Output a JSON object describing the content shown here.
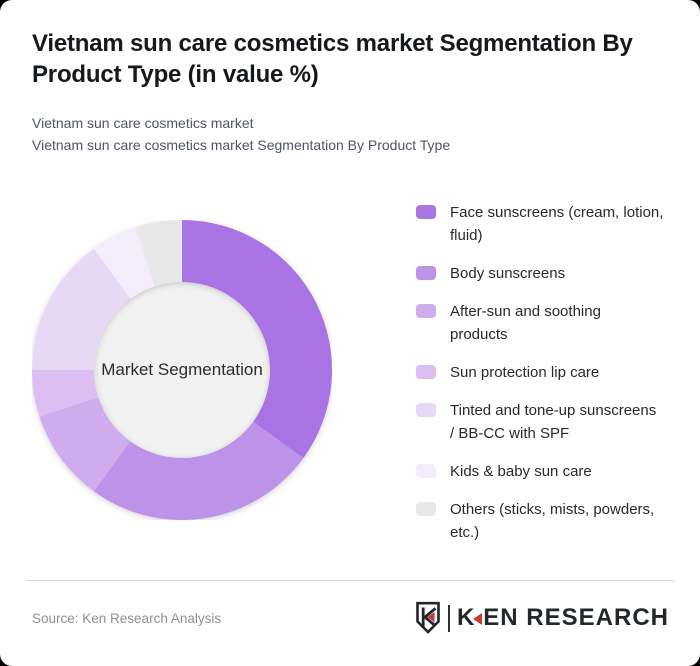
{
  "header": {
    "title": "Vietnam sun care cosmetics market Segmentation By Product Type (in value %)",
    "subtitle_line1": "Vietnam sun care cosmetics market",
    "subtitle_line2": "Vietnam sun care cosmetics market Segmentation By Product Type"
  },
  "chart_data": {
    "type": "pie",
    "variant": "donut",
    "title": "Vietnam sun care cosmetics market Segmentation By Product Type (in value %)",
    "units": "% of value",
    "center_label": "Market Segmentation",
    "hole_color": "#f1f1f1",
    "legend_position": "right",
    "start_angle_deg": 0,
    "direction": "clockwise",
    "segments": [
      {
        "label": "Face sunscreens (cream, lotion, fluid)",
        "value": 35,
        "color": "#a973e4"
      },
      {
        "label": "Body sunscreens",
        "value": 25,
        "color": "#bd92e9"
      },
      {
        "label": "After-sun and soothing products",
        "value": 10,
        "color": "#cfacee"
      },
      {
        "label": "Sun protection lip care",
        "value": 5,
        "color": "#dcbef3"
      },
      {
        "label": "Tinted and tone-up sunscreens / BB-CC with SPF",
        "value": 15,
        "color": "#e7d9f6"
      },
      {
        "label": "Kids & baby sun care",
        "value": 5,
        "color": "#f3edfb"
      },
      {
        "label": "Others (sticks, mists, powders, etc.)",
        "value": 5,
        "color": "#e8e8e9"
      }
    ]
  },
  "footer": {
    "source": "Source: Ken Research Analysis",
    "logo": {
      "badge_letter": "K",
      "wordmark_k": "K",
      "wordmark_rest": "EN RESEARCH",
      "accent_color": "#c63d36",
      "text_color": "#23272c"
    }
  }
}
